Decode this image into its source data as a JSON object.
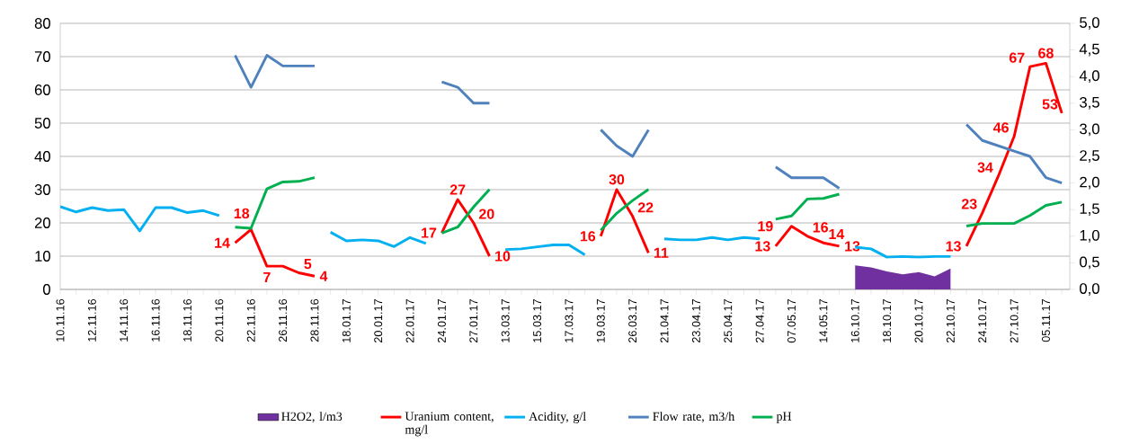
{
  "chart_data": {
    "type": "line",
    "categories": [
      "10.11.16",
      null,
      "12.11.16",
      null,
      "14.11.16",
      null,
      "16.11.16",
      null,
      "18.11.16",
      null,
      "20.11.16",
      null,
      "22.11.16",
      null,
      "26.11.16",
      null,
      "28.11.16",
      null,
      "18.01.17",
      null,
      "20.01.17",
      null,
      "22.01.17",
      null,
      "24.01.17",
      null,
      "27.01.17",
      null,
      "13.03.17",
      null,
      "15.03.17",
      null,
      "17.03.17",
      null,
      "19.03.17",
      null,
      "26.03.17",
      null,
      "21.04.17",
      null,
      "23.04.17",
      null,
      "25.04.17",
      null,
      "27.04.17",
      null,
      "07.05.17",
      null,
      "14.05.17",
      null,
      "16.10.17",
      null,
      "18.10.17",
      null,
      "20.10.17",
      null,
      "22.10.17",
      null,
      "24.10.17",
      null,
      "27.10.17",
      null,
      "05.11.17",
      null
    ],
    "series": [
      {
        "name": "H2O2, l/m3",
        "type": "area",
        "color": "#7030a0",
        "values": [
          null,
          null,
          null,
          null,
          null,
          null,
          null,
          null,
          null,
          null,
          null,
          null,
          null,
          null,
          null,
          null,
          null,
          null,
          null,
          null,
          null,
          null,
          null,
          null,
          null,
          null,
          null,
          null,
          null,
          null,
          null,
          null,
          null,
          null,
          null,
          null,
          null,
          null,
          null,
          null,
          null,
          null,
          null,
          null,
          null,
          null,
          null,
          null,
          null,
          null,
          7.2,
          6.6,
          5.4,
          4.5,
          5.2,
          3.9,
          6.3,
          null,
          null,
          null,
          null,
          null,
          null,
          null
        ]
      },
      {
        "name": "Uranium content, mg/l",
        "color": "#ff0000",
        "values": [
          null,
          null,
          null,
          null,
          null,
          null,
          null,
          null,
          null,
          null,
          null,
          14,
          18,
          7,
          7,
          5,
          4,
          null,
          null,
          null,
          null,
          null,
          null,
          null,
          17,
          27,
          20,
          10,
          null,
          null,
          null,
          null,
          null,
          null,
          16,
          30,
          22,
          11,
          null,
          null,
          null,
          null,
          null,
          null,
          null,
          13,
          19,
          16,
          14,
          13,
          null,
          null,
          null,
          null,
          null,
          null,
          null,
          13,
          23,
          34,
          46,
          67,
          68,
          53
        ],
        "value_labels": [
          null,
          null,
          null,
          null,
          null,
          null,
          null,
          null,
          null,
          null,
          null,
          "14",
          "18",
          "7",
          null,
          "5",
          "4",
          null,
          null,
          null,
          null,
          null,
          null,
          null,
          "17",
          "27",
          "20",
          "10",
          null,
          null,
          null,
          null,
          null,
          null,
          "16",
          "30",
          "22",
          "11",
          null,
          null,
          null,
          null,
          null,
          null,
          null,
          "13",
          "19",
          "16",
          "14",
          "13",
          null,
          null,
          null,
          null,
          null,
          null,
          null,
          "13",
          "23",
          "34",
          "46",
          "67",
          "68",
          "53"
        ]
      },
      {
        "name": "Acidity, g/l",
        "color": "#00b0f0",
        "values": [
          24.9,
          23.3,
          24.6,
          23.7,
          24.0,
          17.6,
          24.6,
          24.6,
          23.1,
          23.7,
          22.2,
          null,
          null,
          null,
          null,
          null,
          null,
          17.2,
          14.6,
          14.9,
          14.6,
          12.9,
          15.6,
          13.8,
          null,
          null,
          null,
          null,
          12.0,
          12.2,
          12.8,
          13.4,
          13.4,
          10.4,
          null,
          null,
          null,
          null,
          15.2,
          14.9,
          14.9,
          15.6,
          14.9,
          15.6,
          15.2,
          null,
          null,
          null,
          null,
          null,
          12.7,
          12.2,
          9.7,
          9.9,
          9.7,
          9.9,
          9.9,
          null,
          null,
          null,
          null,
          null,
          null,
          null
        ]
      },
      {
        "name": "Flow rate, m3/h",
        "axis": "y2",
        "color": "#4f81bd",
        "values": [
          null,
          null,
          null,
          null,
          null,
          null,
          null,
          null,
          null,
          null,
          null,
          4.4,
          3.8,
          4.4,
          4.2,
          4.2,
          4.2,
          null,
          null,
          null,
          null,
          null,
          null,
          null,
          3.9,
          3.8,
          3.5,
          3.5,
          null,
          null,
          null,
          null,
          null,
          null,
          3.0,
          2.7,
          2.5,
          3.0,
          null,
          null,
          null,
          null,
          null,
          null,
          null,
          2.3,
          2.1,
          2.1,
          2.1,
          1.9,
          null,
          null,
          null,
          null,
          null,
          null,
          null,
          3.1,
          2.8,
          2.7,
          2.6,
          2.5,
          2.1,
          2.0
        ]
      },
      {
        "name": "pH",
        "axis": "y2",
        "color": "#00b050",
        "values": [
          null,
          null,
          null,
          null,
          null,
          null,
          null,
          null,
          null,
          null,
          null,
          1.17,
          1.15,
          1.89,
          2.02,
          2.03,
          2.1,
          null,
          null,
          null,
          null,
          null,
          null,
          null,
          1.06,
          1.17,
          1.55,
          1.88,
          null,
          null,
          null,
          null,
          null,
          null,
          1.11,
          1.43,
          1.67,
          1.88,
          null,
          null,
          null,
          null,
          null,
          null,
          null,
          1.32,
          1.38,
          1.7,
          1.71,
          1.79,
          null,
          null,
          null,
          null,
          null,
          null,
          null,
          1.19,
          1.24,
          1.24,
          1.24,
          1.39,
          1.58,
          1.64
        ]
      }
    ],
    "ylim": [
      0,
      80
    ],
    "yticks": [
      0,
      10,
      20,
      30,
      40,
      50,
      60,
      70,
      80
    ],
    "y2lim": [
      0,
      5
    ],
    "y2ticks": [
      {
        "value": 0,
        "label": "0,0"
      },
      {
        "value": 0.5,
        "label": "0,5"
      },
      {
        "value": 1,
        "label": "1,0"
      },
      {
        "value": 1.5,
        "label": "1,5"
      },
      {
        "value": 2,
        "label": "2,0"
      },
      {
        "value": 2.5,
        "label": "2,5"
      },
      {
        "value": 3,
        "label": "3,0"
      },
      {
        "value": 3.5,
        "label": "3,5"
      },
      {
        "value": 4,
        "label": "4,0"
      },
      {
        "value": 4.5,
        "label": "4,5"
      },
      {
        "value": 5,
        "label": "5,0"
      }
    ],
    "grid": "y",
    "legend": "bottom",
    "marker": "none",
    "line_style": "solid"
  }
}
